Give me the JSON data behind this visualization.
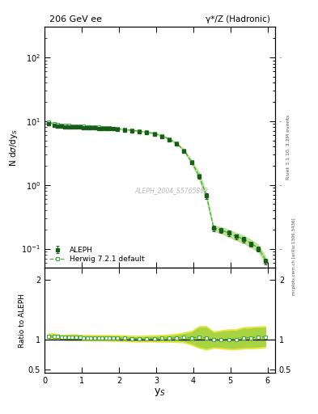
{
  "title_left": "206 GeV ee",
  "title_right": "γ*/Z (Hadronic)",
  "right_label_top": "Rivet 3.1.10, 3.2M events",
  "right_label_bot": "mcplots.cern.ch [arXiv:1306.3436]",
  "watermark": "ALEPH_2004_S5765862",
  "aleph_x": [
    0.1,
    0.25,
    0.35,
    0.45,
    0.55,
    0.65,
    0.75,
    0.85,
    0.95,
    1.05,
    1.15,
    1.25,
    1.35,
    1.45,
    1.55,
    1.65,
    1.75,
    1.85,
    1.95,
    2.15,
    2.35,
    2.55,
    2.75,
    2.95,
    3.15,
    3.35,
    3.55,
    3.75,
    3.95,
    4.15,
    4.35,
    4.55,
    4.75,
    4.95,
    5.15,
    5.35,
    5.55,
    5.75,
    5.95
  ],
  "aleph_y": [
    9.0,
    8.6,
    8.4,
    8.3,
    8.2,
    8.15,
    8.1,
    8.05,
    8.0,
    7.95,
    7.9,
    7.85,
    7.8,
    7.75,
    7.7,
    7.65,
    7.6,
    7.55,
    7.45,
    7.25,
    7.05,
    6.85,
    6.6,
    6.3,
    5.75,
    5.15,
    4.35,
    3.35,
    2.25,
    1.35,
    0.67,
    0.21,
    0.195,
    0.175,
    0.155,
    0.138,
    0.118,
    0.098,
    0.063
  ],
  "aleph_yerr": [
    0.25,
    0.18,
    0.16,
    0.15,
    0.14,
    0.13,
    0.12,
    0.12,
    0.12,
    0.12,
    0.12,
    0.12,
    0.12,
    0.12,
    0.12,
    0.12,
    0.12,
    0.12,
    0.12,
    0.13,
    0.14,
    0.15,
    0.16,
    0.17,
    0.18,
    0.18,
    0.17,
    0.15,
    0.12,
    0.09,
    0.06,
    0.02,
    0.018,
    0.016,
    0.014,
    0.013,
    0.011,
    0.009,
    0.006
  ],
  "herwig_x": [
    0.1,
    0.25,
    0.35,
    0.45,
    0.55,
    0.65,
    0.75,
    0.85,
    0.95,
    1.05,
    1.15,
    1.25,
    1.35,
    1.45,
    1.55,
    1.65,
    1.75,
    1.85,
    1.95,
    2.15,
    2.35,
    2.55,
    2.75,
    2.95,
    3.15,
    3.35,
    3.55,
    3.75,
    3.95,
    4.15,
    4.35,
    4.55,
    4.75,
    4.95,
    5.15,
    5.35,
    5.55,
    5.75,
    5.95
  ],
  "herwig_y": [
    9.55,
    9.15,
    8.82,
    8.64,
    8.53,
    8.47,
    8.4,
    8.34,
    8.28,
    8.22,
    8.16,
    8.1,
    8.05,
    8.0,
    7.95,
    7.88,
    7.82,
    7.75,
    7.65,
    7.42,
    7.18,
    6.95,
    6.73,
    6.43,
    5.88,
    5.28,
    4.48,
    3.47,
    2.32,
    1.41,
    0.69,
    0.21,
    0.196,
    0.176,
    0.156,
    0.142,
    0.122,
    0.102,
    0.066
  ],
  "herwig_band_lo": [
    9.3,
    8.9,
    8.6,
    8.42,
    8.31,
    8.25,
    8.18,
    8.12,
    8.06,
    8.0,
    7.94,
    7.88,
    7.83,
    7.78,
    7.73,
    7.66,
    7.6,
    7.53,
    7.43,
    7.2,
    6.96,
    6.73,
    6.51,
    6.21,
    5.66,
    5.06,
    4.26,
    3.25,
    2.1,
    1.19,
    0.57,
    0.185,
    0.17,
    0.15,
    0.133,
    0.12,
    0.103,
    0.086,
    0.056
  ],
  "herwig_band_hi": [
    9.8,
    9.4,
    9.04,
    8.86,
    8.75,
    8.69,
    8.62,
    8.56,
    8.5,
    8.44,
    8.38,
    8.32,
    8.27,
    8.22,
    8.17,
    8.1,
    8.04,
    7.97,
    7.87,
    7.64,
    7.4,
    7.17,
    6.95,
    6.65,
    6.1,
    5.5,
    4.7,
    3.69,
    2.54,
    1.63,
    0.81,
    0.235,
    0.222,
    0.202,
    0.179,
    0.164,
    0.141,
    0.118,
    0.076
  ],
  "ratio_herwig": [
    1.06,
    1.06,
    1.05,
    1.04,
    1.04,
    1.04,
    1.04,
    1.04,
    1.035,
    1.034,
    1.033,
    1.032,
    1.032,
    1.032,
    1.032,
    1.03,
    1.03,
    1.026,
    1.027,
    1.024,
    1.018,
    1.015,
    1.02,
    1.02,
    1.022,
    1.025,
    1.03,
    1.036,
    1.031,
    1.044,
    1.03,
    1.0,
    1.005,
    1.006,
    1.006,
    1.03,
    1.034,
    1.041,
    1.048
  ],
  "ratio_green_lo": [
    1.033,
    1.033,
    1.026,
    1.018,
    1.013,
    1.01,
    1.009,
    1.008,
    1.007,
    1.006,
    1.005,
    1.004,
    1.004,
    1.004,
    1.004,
    1.002,
    1.0,
    0.997,
    0.997,
    0.993,
    0.987,
    0.984,
    0.986,
    0.984,
    0.982,
    0.982,
    0.979,
    0.971,
    0.933,
    0.881,
    0.851,
    0.881,
    0.872,
    0.857,
    0.857,
    0.869,
    0.873,
    0.878,
    0.889
  ],
  "ratio_green_hi": [
    1.087,
    1.087,
    1.074,
    1.062,
    1.067,
    1.07,
    1.071,
    1.072,
    1.063,
    1.062,
    1.061,
    1.06,
    1.06,
    1.06,
    1.06,
    1.058,
    1.06,
    1.055,
    1.057,
    1.055,
    1.049,
    1.046,
    1.054,
    1.056,
    1.062,
    1.068,
    1.081,
    1.101,
    1.129,
    1.207,
    1.209,
    1.119,
    1.138,
    1.155,
    1.155,
    1.191,
    1.195,
    1.204,
    1.207
  ],
  "ratio_yellow_lo": [
    1.006,
    1.006,
    0.999,
    0.992,
    0.986,
    0.983,
    0.982,
    0.981,
    0.98,
    0.979,
    0.978,
    0.977,
    0.977,
    0.977,
    0.977,
    0.975,
    0.973,
    0.97,
    0.97,
    0.966,
    0.96,
    0.957,
    0.959,
    0.957,
    0.955,
    0.955,
    0.952,
    0.944,
    0.906,
    0.854,
    0.824,
    0.854,
    0.845,
    0.83,
    0.83,
    0.842,
    0.846,
    0.851,
    0.862
  ],
  "ratio_yellow_hi": [
    1.114,
    1.114,
    1.101,
    1.088,
    1.094,
    1.097,
    1.098,
    1.099,
    1.09,
    1.089,
    1.088,
    1.087,
    1.087,
    1.087,
    1.087,
    1.085,
    1.087,
    1.082,
    1.084,
    1.082,
    1.076,
    1.073,
    1.081,
    1.083,
    1.089,
    1.095,
    1.108,
    1.128,
    1.156,
    1.234,
    1.236,
    1.146,
    1.165,
    1.182,
    1.182,
    1.218,
    1.222,
    1.231,
    1.234
  ],
  "aleph_color": "#1a5c1a",
  "herwig_color": "#44aa44",
  "band_green": "#88cc44",
  "band_yellow": "#dddd00",
  "xlim": [
    0,
    6.2
  ],
  "ylim_main": [
    0.05,
    300
  ],
  "ylim_ratio": [
    0.45,
    2.2
  ],
  "yticks_ratio": [
    0.5,
    1.0,
    2.0
  ],
  "ytick_labels_ratio": [
    "0.5",
    "1",
    "2"
  ]
}
